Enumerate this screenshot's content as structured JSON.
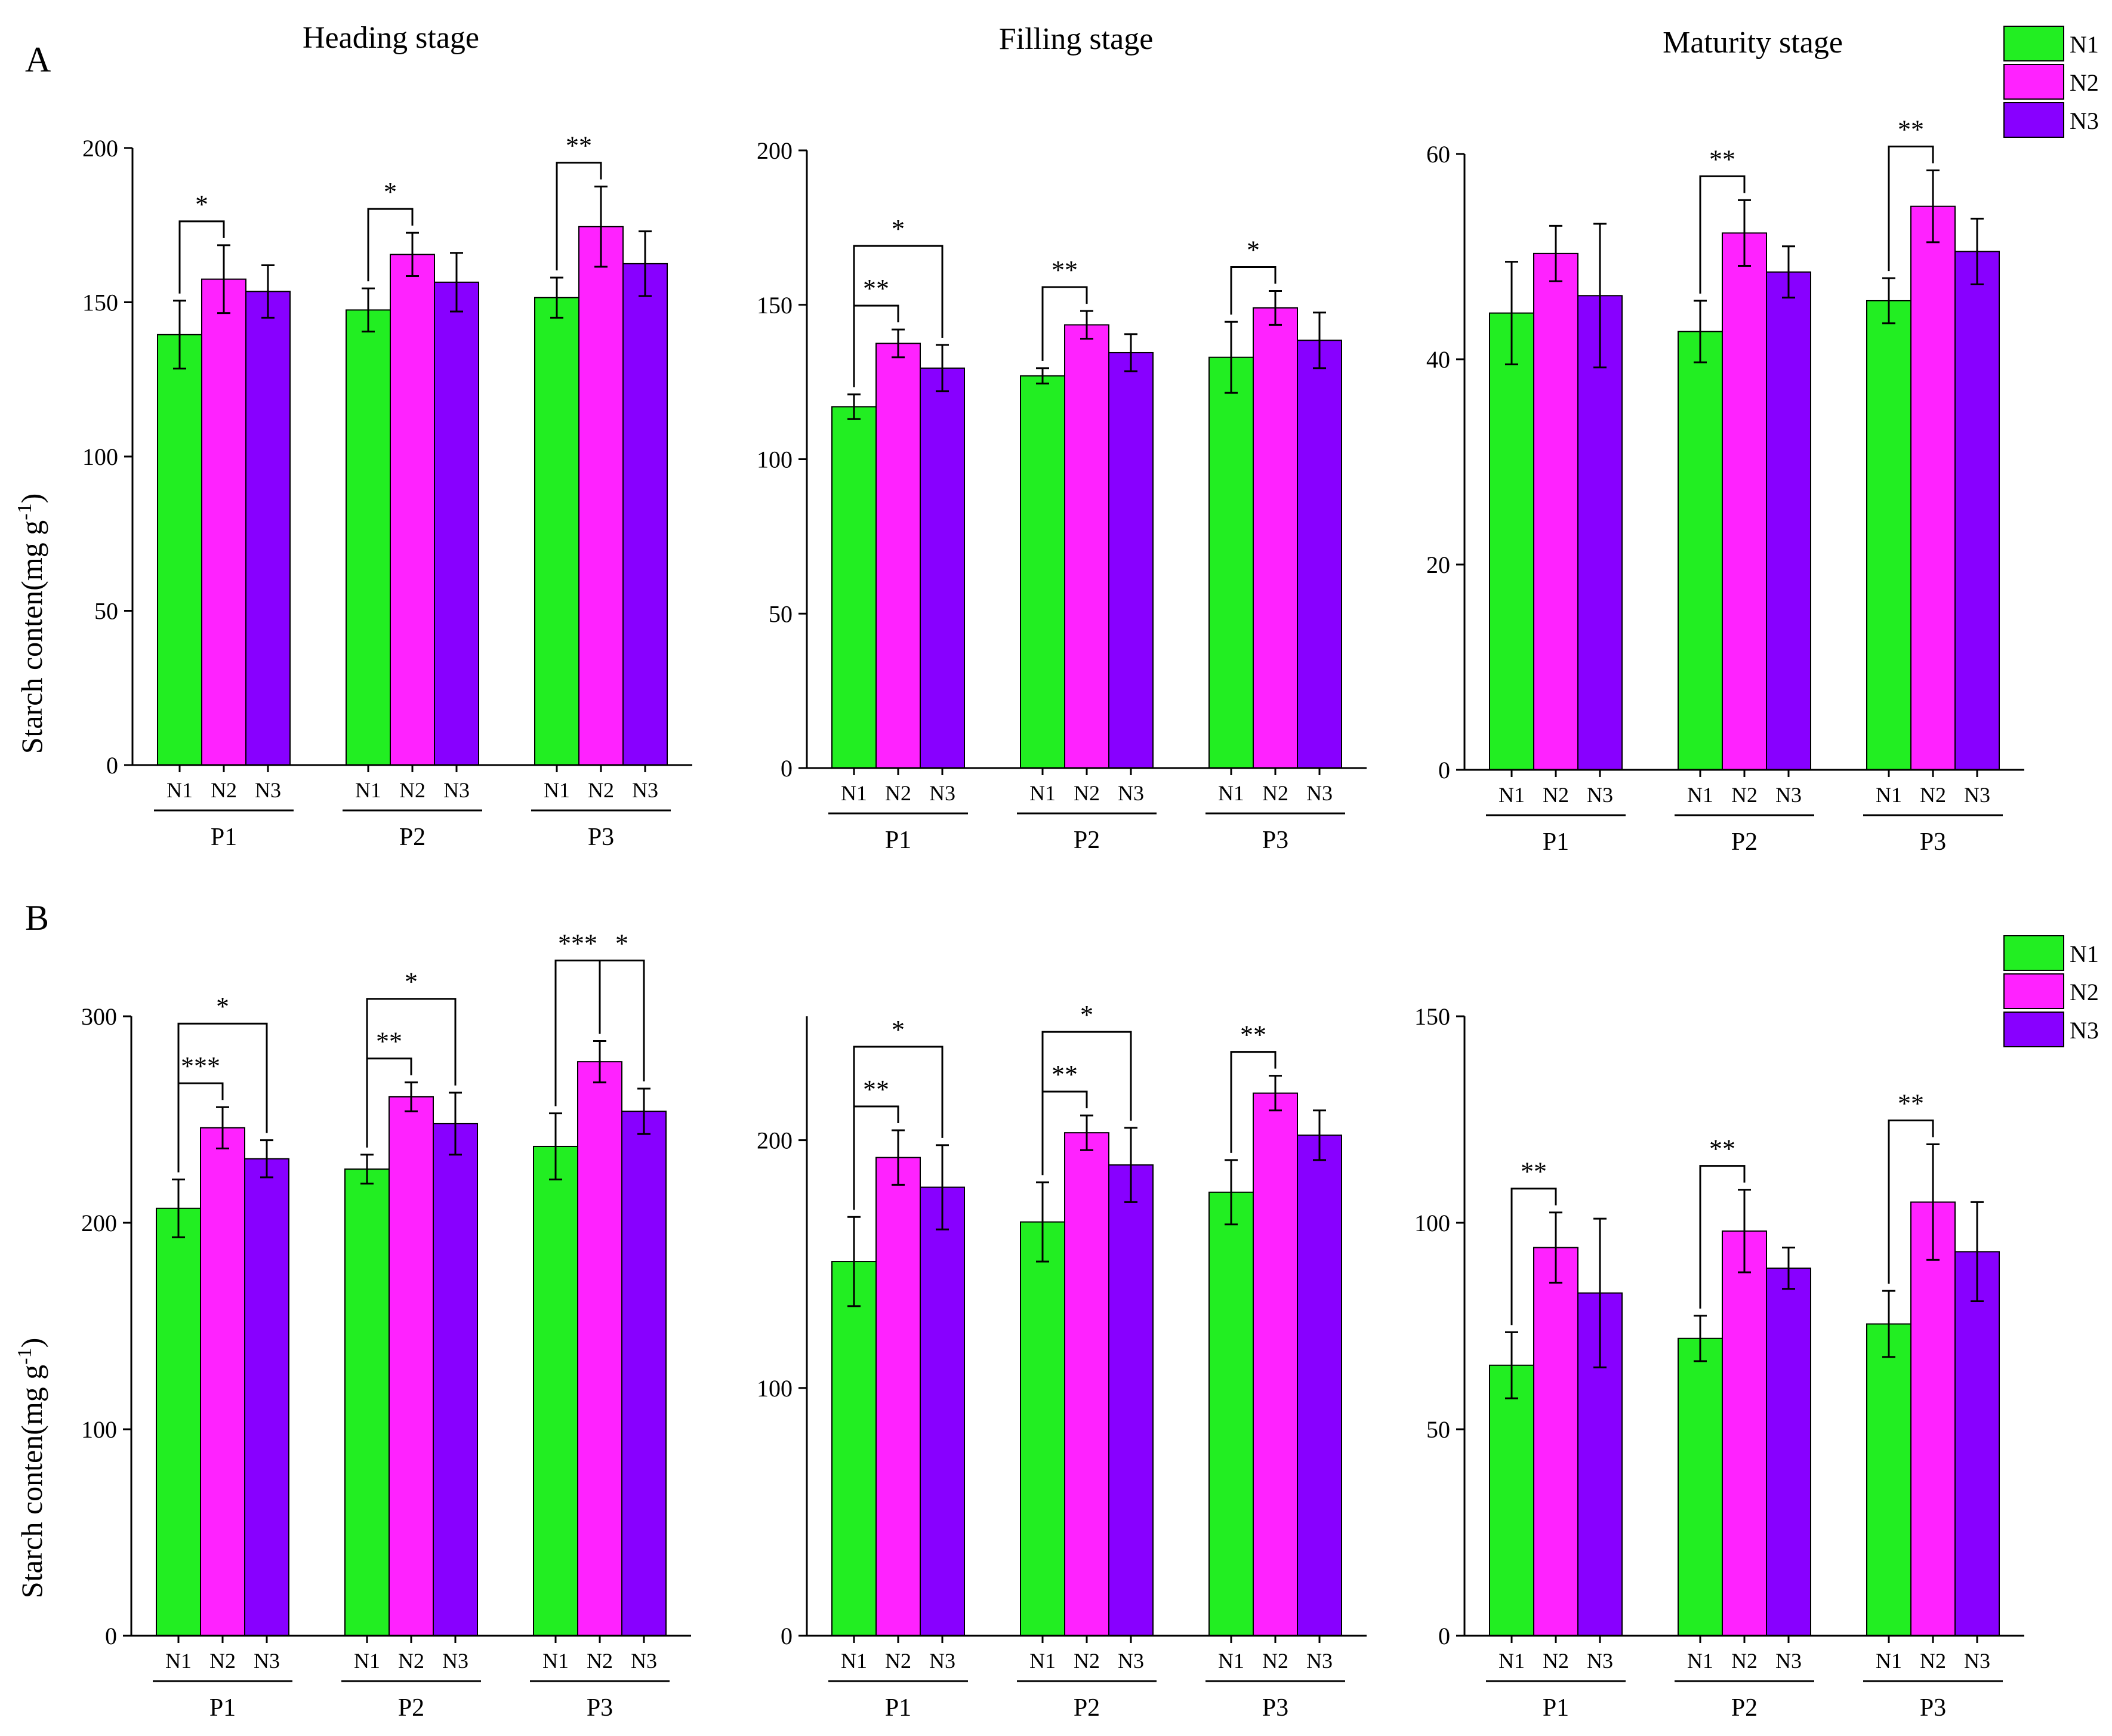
{
  "figure": {
    "row_labels": [
      "A",
      "B"
    ],
    "y_axis_label": "Starch conten(mg g",
    "y_axis_label_sup": "-1",
    "y_axis_label_end": ")",
    "legend": [
      {
        "name": "N1",
        "color": "#22ee22"
      },
      {
        "name": "N2",
        "color": "#ff22ff"
      },
      {
        "name": "N3",
        "color": "#8800ff"
      }
    ]
  },
  "chart_data": [
    {
      "type": "bar",
      "row": "A",
      "title": "Heading stage",
      "ylim": [
        0,
        200
      ],
      "yticks": [
        0,
        50,
        100,
        150,
        200
      ],
      "groups": [
        "P1",
        "P2",
        "P3"
      ],
      "series_names": [
        "N1",
        "N2",
        "N3"
      ],
      "values": [
        [
          139.5,
          157.5,
          153.5
        ],
        [
          147.5,
          165.5,
          156.5
        ],
        [
          151.5,
          174.5,
          162.5
        ]
      ],
      "errors": [
        [
          11,
          11,
          8.5
        ],
        [
          7,
          7,
          9.5
        ],
        [
          6.5,
          13,
          10.5
        ]
      ],
      "significance": [
        {
          "group": 0,
          "from": 0,
          "to": 1,
          "label": "*",
          "level": 0
        },
        {
          "group": 1,
          "from": 0,
          "to": 1,
          "label": "*",
          "level": 0
        },
        {
          "group": 2,
          "from": 0,
          "to": 1,
          "label": "**",
          "level": 0
        }
      ]
    },
    {
      "type": "bar",
      "row": "A",
      "title": "Filling stage",
      "ylim": [
        0,
        200
      ],
      "yticks": [
        0,
        50,
        100,
        150,
        200
      ],
      "groups": [
        "P1",
        "P2",
        "P3"
      ],
      "series_names": [
        "N1",
        "N2",
        "N3"
      ],
      "values": [
        [
          117,
          137.5,
          129.5
        ],
        [
          127,
          143.5,
          134.5
        ],
        [
          133,
          149,
          138.5
        ]
      ],
      "errors": [
        [
          4,
          4.5,
          7.5
        ],
        [
          2.5,
          4.5,
          6
        ],
        [
          11.5,
          5.5,
          9
        ]
      ],
      "significance": [
        {
          "group": 0,
          "from": 0,
          "to": 1,
          "label": "**",
          "level": 0
        },
        {
          "group": 0,
          "from": 0,
          "to": 2,
          "label": "*",
          "level": 1
        },
        {
          "group": 1,
          "from": 0,
          "to": 1,
          "label": "**",
          "level": 0
        },
        {
          "group": 2,
          "from": 0,
          "to": 1,
          "label": "*",
          "level": 0
        }
      ]
    },
    {
      "type": "bar",
      "row": "A",
      "title": "Maturity stage",
      "ylim": [
        0,
        60
      ],
      "yticks": [
        0,
        20,
        40,
        60
      ],
      "groups": [
        "P1",
        "P2",
        "P3"
      ],
      "series_names": [
        "N1",
        "N2",
        "N3"
      ],
      "values": [
        [
          44.5,
          50.3,
          46.2
        ],
        [
          42.7,
          52.3,
          48.5
        ],
        [
          45.7,
          54.9,
          50.5
        ]
      ],
      "errors": [
        [
          5,
          2.7,
          7
        ],
        [
          3,
          3.2,
          2.5
        ],
        [
          2.2,
          3.5,
          3.2
        ]
      ],
      "significance": [
        {
          "group": 1,
          "from": 0,
          "to": 1,
          "label": "**",
          "level": 0
        },
        {
          "group": 2,
          "from": 0,
          "to": 1,
          "label": "**",
          "level": 0
        }
      ]
    },
    {
      "type": "bar",
      "row": "B",
      "title": "",
      "ylim": [
        0,
        300
      ],
      "yticks": [
        0,
        100,
        200,
        300
      ],
      "groups": [
        "P1",
        "P2",
        "P3"
      ],
      "series_names": [
        "N1",
        "N2",
        "N3"
      ],
      "values": [
        [
          207,
          246,
          231
        ],
        [
          226,
          261,
          248
        ],
        [
          237,
          278,
          254
        ]
      ],
      "errors": [
        [
          14,
          10,
          9
        ],
        [
          7,
          7,
          15
        ],
        [
          16,
          10,
          11
        ]
      ],
      "significance": [
        {
          "group": 0,
          "from": 0,
          "to": 1,
          "label": "***",
          "level": 0
        },
        {
          "group": 0,
          "from": 0,
          "to": 2,
          "label": "*",
          "level": 1
        },
        {
          "group": 1,
          "from": 0,
          "to": 1,
          "label": "**",
          "level": 0
        },
        {
          "group": 1,
          "from": 0,
          "to": 2,
          "label": "*",
          "level": 1
        },
        {
          "group": 2,
          "from": 0,
          "to": 1,
          "label": "***",
          "level": 1
        },
        {
          "group": 2,
          "from": 1,
          "to": 2,
          "label": "*",
          "level": 1
        }
      ]
    },
    {
      "type": "bar",
      "row": "B",
      "title": "",
      "ylim": [
        0,
        250
      ],
      "yticks": [
        0,
        100,
        200
      ],
      "groups": [
        "P1",
        "P2",
        "P3"
      ],
      "series_names": [
        "N1",
        "N2",
        "N3"
      ],
      "values": [
        [
          151,
          193,
          181
        ],
        [
          167,
          203,
          190
        ],
        [
          179,
          219,
          202
        ]
      ],
      "errors": [
        [
          18,
          11,
          17
        ],
        [
          16,
          7,
          15
        ],
        [
          13,
          7,
          10
        ]
      ],
      "significance": [
        {
          "group": 0,
          "from": 0,
          "to": 1,
          "label": "**",
          "level": 0
        },
        {
          "group": 0,
          "from": 0,
          "to": 2,
          "label": "*",
          "level": 1
        },
        {
          "group": 1,
          "from": 0,
          "to": 1,
          "label": "**",
          "level": 0
        },
        {
          "group": 1,
          "from": 0,
          "to": 2,
          "label": "*",
          "level": 1
        },
        {
          "group": 2,
          "from": 0,
          "to": 1,
          "label": "**",
          "level": 0
        }
      ]
    },
    {
      "type": "bar",
      "row": "B",
      "title": "",
      "ylim": [
        0,
        150
      ],
      "yticks": [
        0,
        50,
        100,
        150
      ],
      "groups": [
        "P1",
        "P2",
        "P3"
      ],
      "series_names": [
        "N1",
        "N2",
        "N3"
      ],
      "values": [
        [
          65.5,
          94,
          83
        ],
        [
          72,
          98,
          89
        ],
        [
          75.5,
          105,
          93
        ]
      ],
      "errors": [
        [
          8,
          8.5,
          18
        ],
        [
          5.5,
          10,
          5
        ],
        [
          8,
          14,
          12
        ]
      ],
      "significance": [
        {
          "group": 0,
          "from": 0,
          "to": 1,
          "label": "**",
          "level": 0
        },
        {
          "group": 1,
          "from": 0,
          "to": 1,
          "label": "**",
          "level": 0
        },
        {
          "group": 2,
          "from": 0,
          "to": 1,
          "label": "**",
          "level": 0
        }
      ]
    }
  ]
}
